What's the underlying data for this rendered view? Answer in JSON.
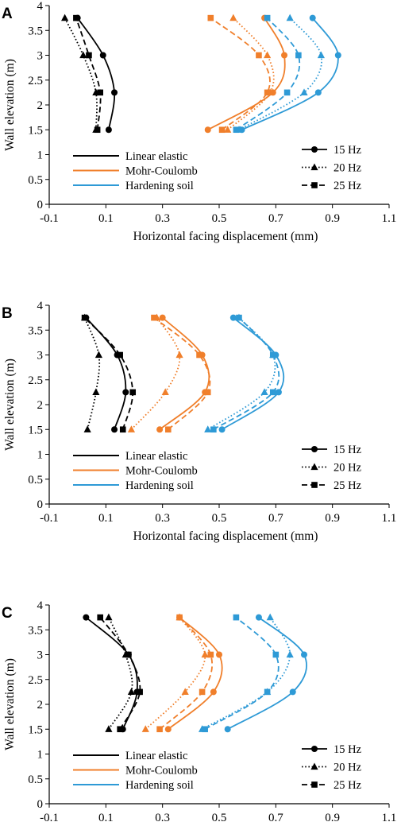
{
  "chart_data": [
    {
      "type": "line",
      "panel": "A",
      "xlabel": "Horizontal facing displacement (mm)",
      "ylabel": "Wall elevation (m)",
      "xlim": [
        -0.1,
        1.1
      ],
      "ylim": [
        0,
        4
      ],
      "xticks": [
        "-0.1",
        "0.1",
        "0.3",
        "0.5",
        "0.7",
        "0.9",
        "1.1"
      ],
      "yticks": [
        "0",
        "0.5",
        "1",
        "1.5",
        "2",
        "2.5",
        "3",
        "3.5",
        "4"
      ],
      "grid": false,
      "legend_models": [
        "Linear elastic",
        "Mohr-Coulomb",
        "Hardening soil"
      ],
      "legend_frequencies": [
        "15 Hz",
        "20 Hz",
        "25 Hz"
      ],
      "series": [
        {
          "model": "Linear elastic",
          "frequency": "15 Hz",
          "color": "#000000",
          "dash": "solid",
          "marker": "circle",
          "x": [
            0.11,
            0.13,
            0.09,
            0.0
          ],
          "y": [
            1.5,
            2.25,
            3.0,
            3.75
          ]
        },
        {
          "model": "Linear elastic",
          "frequency": "20 Hz",
          "color": "#000000",
          "dash": "dotted",
          "marker": "triangle",
          "x": [
            0.065,
            0.065,
            0.02,
            -0.045
          ],
          "y": [
            1.5,
            2.25,
            3.0,
            3.75
          ]
        },
        {
          "model": "Linear elastic",
          "frequency": "25 Hz",
          "color": "#000000",
          "dash": "dashed",
          "marker": "square",
          "x": [
            0.07,
            0.08,
            0.04,
            -0.005
          ],
          "y": [
            1.5,
            2.25,
            3.0,
            3.75
          ]
        },
        {
          "model": "Mohr-Coulomb",
          "frequency": "15 Hz",
          "color": "#F07F2B",
          "dash": "solid",
          "marker": "circle",
          "x": [
            0.46,
            0.69,
            0.73,
            0.66
          ],
          "y": [
            1.5,
            2.25,
            3.0,
            3.75
          ]
        },
        {
          "model": "Mohr-Coulomb",
          "frequency": "20 Hz",
          "color": "#F07F2B",
          "dash": "dotted",
          "marker": "triangle",
          "x": [
            0.53,
            0.68,
            0.67,
            0.55
          ],
          "y": [
            1.5,
            2.25,
            3.0,
            3.75
          ]
        },
        {
          "model": "Mohr-Coulomb",
          "frequency": "25 Hz",
          "color": "#F07F2B",
          "dash": "dashed",
          "marker": "square",
          "x": [
            0.51,
            0.67,
            0.64,
            0.47
          ],
          "y": [
            1.5,
            2.25,
            3.0,
            3.75
          ]
        },
        {
          "model": "Hardening soil",
          "frequency": "15 Hz",
          "color": "#2E9AD6",
          "dash": "solid",
          "marker": "circle",
          "x": [
            0.58,
            0.85,
            0.92,
            0.83
          ],
          "y": [
            1.5,
            2.25,
            3.0,
            3.75
          ]
        },
        {
          "model": "Hardening soil",
          "frequency": "20 Hz",
          "color": "#2E9AD6",
          "dash": "dotted",
          "marker": "triangle",
          "x": [
            0.57,
            0.8,
            0.86,
            0.75
          ],
          "y": [
            1.5,
            2.25,
            3.0,
            3.75
          ]
        },
        {
          "model": "Hardening soil",
          "frequency": "25 Hz",
          "color": "#2E9AD6",
          "dash": "dashed",
          "marker": "square",
          "x": [
            0.56,
            0.74,
            0.78,
            0.67
          ],
          "y": [
            1.5,
            2.25,
            3.0,
            3.75
          ]
        }
      ]
    },
    {
      "type": "line",
      "panel": "B",
      "xlabel": "Horizontal facing displacement (mm)",
      "ylabel": "Wall elevation (m)",
      "xlim": [
        -0.1,
        1.1
      ],
      "ylim": [
        0,
        4
      ],
      "xticks": [
        "-0.1",
        "0.1",
        "0.3",
        "0.5",
        "0.7",
        "0.9",
        "1.1"
      ],
      "yticks": [
        "0",
        "0.5",
        "1",
        "1.5",
        "2",
        "2.5",
        "3",
        "3.5",
        "4"
      ],
      "grid": false,
      "legend_models": [
        "Linear elastic",
        "Mohr-Coulomb",
        "Hardening soil"
      ],
      "legend_frequencies": [
        "15 Hz",
        "20 Hz",
        "25 Hz"
      ],
      "series": [
        {
          "model": "Linear elastic",
          "frequency": "15 Hz",
          "color": "#000000",
          "dash": "solid",
          "marker": "circle",
          "x": [
            0.13,
            0.17,
            0.14,
            0.03
          ],
          "y": [
            1.5,
            2.25,
            3.0,
            3.75
          ]
        },
        {
          "model": "Linear elastic",
          "frequency": "20 Hz",
          "color": "#000000",
          "dash": "dotted",
          "marker": "triangle",
          "x": [
            0.035,
            0.065,
            0.075,
            0.025
          ],
          "y": [
            1.5,
            2.25,
            3.0,
            3.75
          ]
        },
        {
          "model": "Linear elastic",
          "frequency": "25 Hz",
          "color": "#000000",
          "dash": "dashed",
          "marker": "square",
          "x": [
            0.16,
            0.195,
            0.15,
            0.025
          ],
          "y": [
            1.5,
            2.25,
            3.0,
            3.75
          ]
        },
        {
          "model": "Mohr-Coulomb",
          "frequency": "15 Hz",
          "color": "#F07F2B",
          "dash": "solid",
          "marker": "circle",
          "x": [
            0.29,
            0.45,
            0.44,
            0.3
          ],
          "y": [
            1.5,
            2.25,
            3.0,
            3.75
          ]
        },
        {
          "model": "Mohr-Coulomb",
          "frequency": "20 Hz",
          "color": "#F07F2B",
          "dash": "dotted",
          "marker": "triangle",
          "x": [
            0.19,
            0.31,
            0.36,
            0.28
          ],
          "y": [
            1.5,
            2.25,
            3.0,
            3.75
          ]
        },
        {
          "model": "Mohr-Coulomb",
          "frequency": "25 Hz",
          "color": "#F07F2B",
          "dash": "dashed",
          "marker": "square",
          "x": [
            0.32,
            0.46,
            0.43,
            0.27
          ],
          "y": [
            1.5,
            2.25,
            3.0,
            3.75
          ]
        },
        {
          "model": "Hardening soil",
          "frequency": "15 Hz",
          "color": "#2E9AD6",
          "dash": "solid",
          "marker": "circle",
          "x": [
            0.51,
            0.71,
            0.7,
            0.55
          ],
          "y": [
            1.5,
            2.25,
            3.0,
            3.75
          ]
        },
        {
          "model": "Hardening soil",
          "frequency": "20 Hz",
          "color": "#2E9AD6",
          "dash": "dotted",
          "marker": "triangle",
          "x": [
            0.46,
            0.66,
            0.69,
            0.57
          ],
          "y": [
            1.5,
            2.25,
            3.0,
            3.75
          ]
        },
        {
          "model": "Hardening soil",
          "frequency": "25 Hz",
          "color": "#2E9AD6",
          "dash": "dashed",
          "marker": "square",
          "x": [
            0.48,
            0.69,
            0.69,
            0.57
          ],
          "y": [
            1.5,
            2.25,
            3.0,
            3.75
          ]
        }
      ]
    },
    {
      "type": "line",
      "panel": "C",
      "xlabel": "Horizontal facing displacement (mm)",
      "ylabel": "Wall elevation (m)",
      "xlim": [
        -0.1,
        1.1
      ],
      "ylim": [
        0,
        4
      ],
      "xticks": [
        "-0.1",
        "0.1",
        "0.3",
        "0.5",
        "0.7",
        "0.9",
        "1.1"
      ],
      "yticks": [
        "0",
        "0.5",
        "1",
        "1.5",
        "2",
        "2.5",
        "3",
        "3.5",
        "4"
      ],
      "grid": false,
      "legend_models": [
        "Linear elastic",
        "Mohr-Coulomb",
        "Hardening soil"
      ],
      "legend_frequencies": [
        "15 Hz",
        "20 Hz",
        "25 Hz"
      ],
      "series": [
        {
          "model": "Linear elastic",
          "frequency": "15 Hz",
          "color": "#000000",
          "dash": "solid",
          "marker": "circle",
          "x": [
            0.16,
            0.21,
            0.18,
            0.03
          ],
          "y": [
            1.5,
            2.25,
            3.0,
            3.75
          ]
        },
        {
          "model": "Linear elastic",
          "frequency": "20 Hz",
          "color": "#000000",
          "dash": "dotted",
          "marker": "triangle",
          "x": [
            0.11,
            0.19,
            0.17,
            0.11
          ],
          "y": [
            1.5,
            2.25,
            3.0,
            3.75
          ]
        },
        {
          "model": "Linear elastic",
          "frequency": "25 Hz",
          "color": "#000000",
          "dash": "dashed",
          "marker": "square",
          "x": [
            0.15,
            0.22,
            0.18,
            0.08
          ],
          "y": [
            1.5,
            2.25,
            3.0,
            3.75
          ]
        },
        {
          "model": "Mohr-Coulomb",
          "frequency": "15 Hz",
          "color": "#F07F2B",
          "dash": "solid",
          "marker": "circle",
          "x": [
            0.32,
            0.48,
            0.5,
            0.36
          ],
          "y": [
            1.5,
            2.25,
            3.0,
            3.75
          ]
        },
        {
          "model": "Mohr-Coulomb",
          "frequency": "20 Hz",
          "color": "#F07F2B",
          "dash": "dotted",
          "marker": "triangle",
          "x": [
            0.24,
            0.38,
            0.45,
            0.36
          ],
          "y": [
            1.5,
            2.25,
            3.0,
            3.75
          ]
        },
        {
          "model": "Mohr-Coulomb",
          "frequency": "25 Hz",
          "color": "#F07F2B",
          "dash": "dashed",
          "marker": "square",
          "x": [
            0.29,
            0.44,
            0.47,
            0.36
          ],
          "y": [
            1.5,
            2.25,
            3.0,
            3.75
          ]
        },
        {
          "model": "Hardening soil",
          "frequency": "15 Hz",
          "color": "#2E9AD6",
          "dash": "solid",
          "marker": "circle",
          "x": [
            0.53,
            0.76,
            0.8,
            0.64
          ],
          "y": [
            1.5,
            2.25,
            3.0,
            3.75
          ]
        },
        {
          "model": "Hardening soil",
          "frequency": "20 Hz",
          "color": "#2E9AD6",
          "dash": "dotted",
          "marker": "triangle",
          "x": [
            0.44,
            0.67,
            0.75,
            0.68
          ],
          "y": [
            1.5,
            2.25,
            3.0,
            3.75
          ]
        },
        {
          "model": "Hardening soil",
          "frequency": "25 Hz",
          "color": "#2E9AD6",
          "dash": "dashed",
          "marker": "square",
          "x": [
            0.45,
            0.67,
            0.7,
            0.56
          ],
          "y": [
            1.5,
            2.25,
            3.0,
            3.75
          ]
        }
      ]
    }
  ]
}
